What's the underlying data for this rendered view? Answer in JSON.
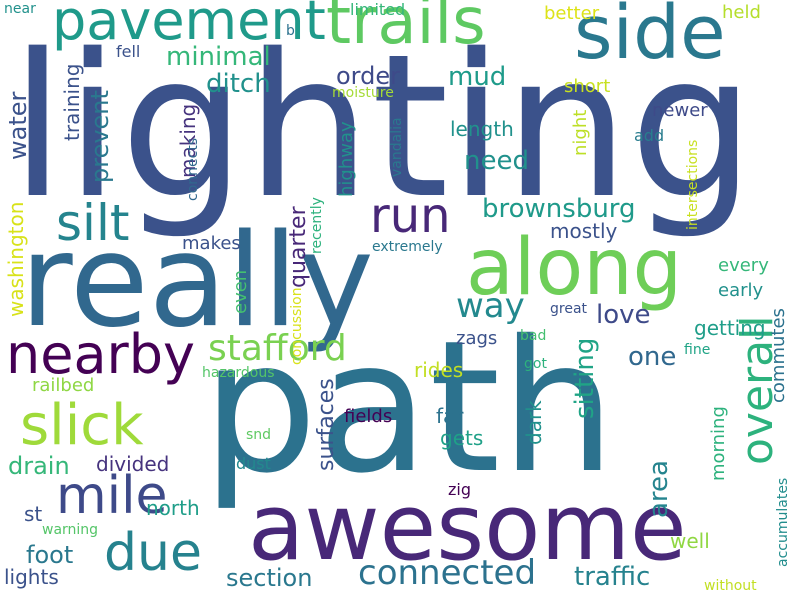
{
  "words": [
    {
      "text": "path",
      "color": "#2c728e",
      "vertical": false
    },
    {
      "text": "lighting",
      "color": "#3b528b",
      "vertical": false
    },
    {
      "text": "really",
      "color": "#31688e",
      "vertical": false
    },
    {
      "text": "awesome",
      "color": "#482878",
      "vertical": false
    },
    {
      "text": "along",
      "color": "#6ece58",
      "vertical": false
    },
    {
      "text": "side",
      "color": "#2a788e",
      "vertical": false
    },
    {
      "text": "trails",
      "color": "#5ec962",
      "vertical": false
    },
    {
      "text": "pavement",
      "color": "#1f9a8a",
      "vertical": false
    },
    {
      "text": "nearby",
      "color": "#440154",
      "vertical": false
    },
    {
      "text": "slick",
      "color": "#9fda3a",
      "vertical": false
    },
    {
      "text": "mile",
      "color": "#3e4a89",
      "vertical": false
    },
    {
      "text": "due",
      "color": "#26828e",
      "vertical": false
    },
    {
      "text": "silt",
      "color": "#25848e",
      "vertical": false
    },
    {
      "text": "run",
      "color": "#482878",
      "vertical": false
    },
    {
      "text": "overall",
      "color": "#2db27d",
      "vertical": true
    },
    {
      "text": "stafford",
      "color": "#7ad151",
      "vertical": false
    },
    {
      "text": "connected",
      "color": "#2c728e",
      "vertical": false
    },
    {
      "text": "way",
      "color": "#23898e",
      "vertical": false
    },
    {
      "text": "brownsburg",
      "color": "#1f9a8a",
      "vertical": false
    },
    {
      "text": "minimal",
      "color": "#35b779",
      "vertical": false
    },
    {
      "text": "ditch",
      "color": "#21918c",
      "vertical": false
    },
    {
      "text": "order",
      "color": "#3e4a89",
      "vertical": false
    },
    {
      "text": "mud",
      "color": "#1e9b8a",
      "vertical": false
    },
    {
      "text": "need",
      "color": "#21918c",
      "vertical": false
    },
    {
      "text": "length",
      "color": "#21918c",
      "vertical": false
    },
    {
      "text": "love",
      "color": "#3e4a89",
      "vertical": false
    },
    {
      "text": "one",
      "color": "#31688e",
      "vertical": false
    },
    {
      "text": "getting",
      "color": "#1f9e89",
      "vertical": false
    },
    {
      "text": "traffic",
      "color": "#26828e",
      "vertical": false
    },
    {
      "text": "section",
      "color": "#2a788e",
      "vertical": false
    },
    {
      "text": "foot",
      "color": "#2a788e",
      "vertical": false
    },
    {
      "text": "drain",
      "color": "#35b779",
      "vertical": false
    },
    {
      "text": "divided",
      "color": "#46337e",
      "vertical": false
    },
    {
      "text": "north",
      "color": "#1f9e89",
      "vertical": false
    },
    {
      "text": "lights",
      "color": "#3b528b",
      "vertical": false
    },
    {
      "text": "railbed",
      "color": "#8fd744",
      "vertical": false
    },
    {
      "text": "rides",
      "color": "#c2df23",
      "vertical": false
    },
    {
      "text": "far",
      "color": "#2c728e",
      "vertical": false
    },
    {
      "text": "gets",
      "color": "#1fa188",
      "vertical": false
    },
    {
      "text": "fields",
      "color": "#440154",
      "vertical": false
    },
    {
      "text": "mostly",
      "color": "#3b528b",
      "vertical": false
    },
    {
      "text": "every",
      "color": "#35b779",
      "vertical": false
    },
    {
      "text": "early",
      "color": "#21918c",
      "vertical": false
    },
    {
      "text": "well",
      "color": "#90d743",
      "vertical": false
    },
    {
      "text": "makes",
      "color": "#3b528b",
      "vertical": false
    },
    {
      "text": "better",
      "color": "#dde318",
      "vertical": false
    },
    {
      "text": "held",
      "color": "#b5de2b",
      "vertical": false
    },
    {
      "text": "short",
      "color": "#c8e020",
      "vertical": false
    },
    {
      "text": "newer",
      "color": "#3e4a89",
      "vertical": false
    },
    {
      "text": "add",
      "color": "#287c8e",
      "vertical": false
    },
    {
      "text": "fell",
      "color": "#3b528b",
      "vertical": false
    },
    {
      "text": "limited",
      "color": "#35b779",
      "vertical": false
    },
    {
      "text": "near",
      "color": "#21918c",
      "vertical": false
    },
    {
      "text": "moisture",
      "color": "#a5db36",
      "vertical": false
    },
    {
      "text": "b",
      "color": "#2c728e",
      "vertical": false
    },
    {
      "text": "extremely",
      "color": "#2a788e",
      "vertical": false
    },
    {
      "text": "great",
      "color": "#3b528b",
      "vertical": false
    },
    {
      "text": "bad",
      "color": "#44bf70",
      "vertical": false
    },
    {
      "text": "zags",
      "color": "#3b528b",
      "vertical": false
    },
    {
      "text": "got",
      "color": "#2db27d",
      "vertical": false
    },
    {
      "text": "fine",
      "color": "#20a486",
      "vertical": false
    },
    {
      "text": "hazardous",
      "color": "#54c568",
      "vertical": false
    },
    {
      "text": "snd",
      "color": "#5ec962",
      "vertical": false
    },
    {
      "text": "dust",
      "color": "#23898e",
      "vertical": false
    },
    {
      "text": "zig",
      "color": "#440154",
      "vertical": false
    },
    {
      "text": "warning",
      "color": "#54c568",
      "vertical": false
    },
    {
      "text": "without",
      "color": "#c2df23",
      "vertical": false
    },
    {
      "text": "st",
      "color": "#3b528b",
      "vertical": false
    },
    {
      "text": "sitting",
      "color": "#20a486",
      "vertical": true
    },
    {
      "text": "dark",
      "color": "#21918c",
      "vertical": true
    },
    {
      "text": "area",
      "color": "#25848e",
      "vertical": true
    },
    {
      "text": "morning",
      "color": "#2db27d",
      "vertical": true
    },
    {
      "text": "commutes",
      "color": "#2c728e",
      "vertical": true
    },
    {
      "text": "accumulates",
      "color": "#228d8d",
      "vertical": true
    },
    {
      "text": "surfaces",
      "color": "#3b528b",
      "vertical": true
    },
    {
      "text": "even",
      "color": "#44bf70",
      "vertical": true
    },
    {
      "text": "quarter",
      "color": "#482878",
      "vertical": true
    },
    {
      "text": "highway",
      "color": "#21918c",
      "vertical": true
    },
    {
      "text": "recently",
      "color": "#2db27d",
      "vertical": true
    },
    {
      "text": "concussion",
      "color": "#d8e219",
      "vertical": true
    },
    {
      "text": "vandalia",
      "color": "#2a788e",
      "vertical": true
    },
    {
      "text": "intersections",
      "color": "#c8e020",
      "vertical": true
    },
    {
      "text": "night",
      "color": "#bddf26",
      "vertical": true
    },
    {
      "text": "making",
      "color": "#46337e",
      "vertical": true
    },
    {
      "text": "connects",
      "color": "#31688e",
      "vertical": true
    },
    {
      "text": "training",
      "color": "#3b528b",
      "vertical": true
    },
    {
      "text": "prevent",
      "color": "#2a788e",
      "vertical": true
    },
    {
      "text": "water",
      "color": "#3b528b",
      "vertical": true
    },
    {
      "text": "washington",
      "color": "#d8e219",
      "vertical": true
    }
  ]
}
